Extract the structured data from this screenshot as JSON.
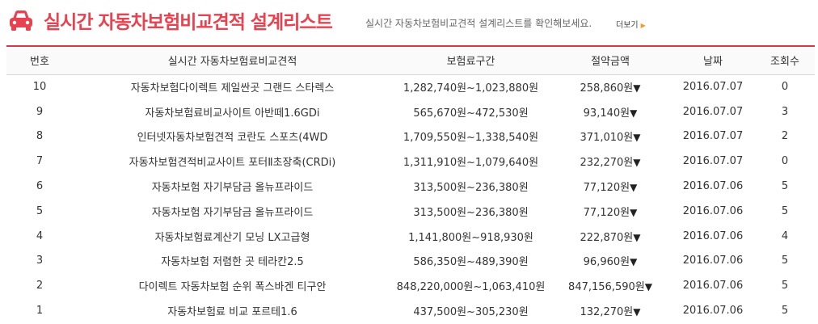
{
  "header": {
    "title": "실시간 자동차보험비교견적 설계리스트",
    "subtitle": "실시간 자동차보험비교견적 설계리스트를 확인해보세요.",
    "more_label": "더보기",
    "icon": "car-icon",
    "accent_color": "#e8414f"
  },
  "table": {
    "columns": [
      "번호",
      "실시간 자동차보험료비교견적",
      "보험료구간",
      "절약금액",
      "날짜",
      "조회수"
    ],
    "rows": [
      {
        "no": "10",
        "title": "자동차보험다이렉트 제일싼곳 그랜드 스타렉스",
        "range": "1,282,740원~1,023,880원",
        "saving": "258,860원",
        "date": "2016.07.07",
        "views": "0"
      },
      {
        "no": "9",
        "title": "자동차보험료비교사이트 아반떼1.6GDi",
        "range": "565,670원~472,530원",
        "saving": "93,140원",
        "date": "2016.07.07",
        "views": "3"
      },
      {
        "no": "8",
        "title": "인터넷자동차보험견적 코란도 스포츠(4WD",
        "range": "1,709,550원~1,338,540원",
        "saving": "371,010원",
        "date": "2016.07.07",
        "views": "2"
      },
      {
        "no": "7",
        "title": "자동차보험견적비교사이트 포터Ⅱ초장축(CRDi)",
        "range": "1,311,910원~1,079,640원",
        "saving": "232,270원",
        "date": "2016.07.07",
        "views": "0"
      },
      {
        "no": "6",
        "title": "자동차보험 자기부담금 올뉴프라이드",
        "range": "313,500원~236,380원",
        "saving": "77,120원",
        "date": "2016.07.06",
        "views": "5"
      },
      {
        "no": "5",
        "title": "자동차보험 자기부담금 올뉴프라이드",
        "range": "313,500원~236,380원",
        "saving": "77,120원",
        "date": "2016.07.06",
        "views": "5"
      },
      {
        "no": "4",
        "title": "자동차보험료계산기 모닝 LX고급형",
        "range": "1,141,800원~918,930원",
        "saving": "222,870원",
        "date": "2016.07.06",
        "views": "4"
      },
      {
        "no": "3",
        "title": "자동차보험 저렴한 곳 테라칸2.5",
        "range": "586,350원~489,390원",
        "saving": "96,960원",
        "date": "2016.07.06",
        "views": "5"
      },
      {
        "no": "2",
        "title": "다이렉트 자동차보험 순위 폭스바겐 티구안",
        "range": "848,220,000원~1,063,410원",
        "saving": "847,156,590원",
        "date": "2016.07.06",
        "views": "5"
      },
      {
        "no": "1",
        "title": "자동차보험료 비교 포르테1.6",
        "range": "437,500원~305,230원",
        "saving": "132,270원",
        "date": "2016.07.06",
        "views": "5"
      }
    ]
  }
}
